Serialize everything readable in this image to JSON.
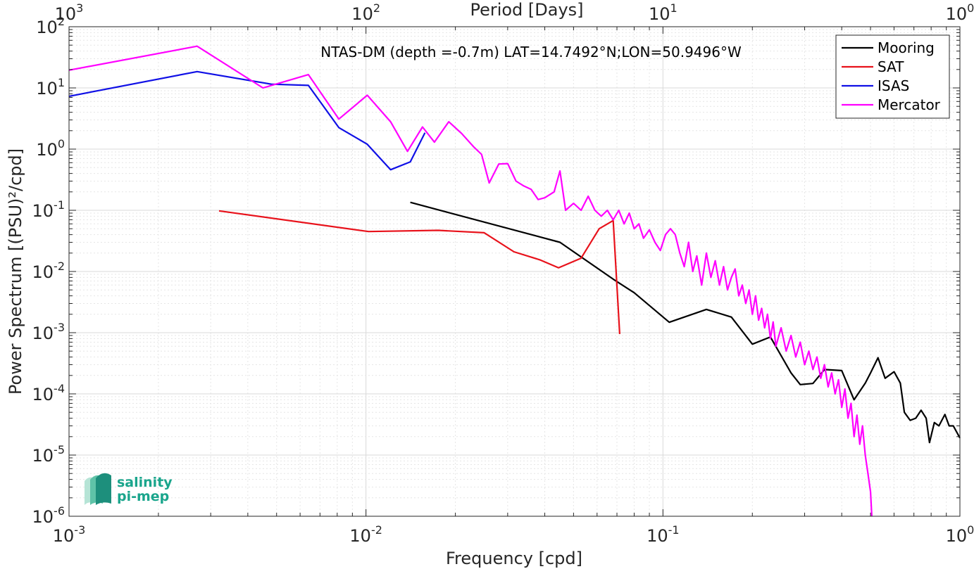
{
  "chart_data": {
    "type": "line",
    "title": "NTAS-DM (depth =-0.7m) LAT=14.7492°N;LON=50.9496°W",
    "xlabel": "Frequency [cpd]",
    "ylabel": "Power Spectrum [(PSU)²/cpd]",
    "top_xlabel": "Period [Days]",
    "x_scale": "log",
    "y_scale": "log",
    "xlim": [
      0.001,
      1
    ],
    "ylim": [
      1e-06,
      100
    ],
    "grid": true,
    "legend_position": "top-right",
    "x_ticks": [
      {
        "base": "10",
        "exp": "-3"
      },
      {
        "base": "10",
        "exp": "-2"
      },
      {
        "base": "10",
        "exp": "-1"
      },
      {
        "base": "10",
        "exp": "0"
      }
    ],
    "top_ticks": [
      {
        "base": "10",
        "exp": "3"
      },
      {
        "base": "10",
        "exp": "2"
      },
      {
        "base": "10",
        "exp": "1"
      },
      {
        "base": "10",
        "exp": "0"
      }
    ],
    "y_ticks": [
      {
        "base": "10",
        "exp": "2"
      },
      {
        "base": "10",
        "exp": "1"
      },
      {
        "base": "10",
        "exp": "0"
      },
      {
        "base": "10",
        "exp": "-1"
      },
      {
        "base": "10",
        "exp": "-2"
      },
      {
        "base": "10",
        "exp": "-3"
      },
      {
        "base": "10",
        "exp": "-4"
      },
      {
        "base": "10",
        "exp": "-5"
      },
      {
        "base": "10",
        "exp": "-6"
      }
    ],
    "series": [
      {
        "name": "Mooring",
        "color": "#000000",
        "points": [
          [
            0.0141,
            0.135
          ],
          [
            0.045,
            0.03
          ],
          [
            0.068,
            0.0075
          ],
          [
            0.08,
            0.0045
          ],
          [
            0.105,
            0.00148
          ],
          [
            0.14,
            0.0024
          ],
          [
            0.17,
            0.0018
          ],
          [
            0.2,
            0.00065
          ],
          [
            0.23,
            0.00085
          ],
          [
            0.27,
            0.00022
          ],
          [
            0.29,
            0.000142
          ],
          [
            0.32,
            0.000148
          ],
          [
            0.35,
            0.00025
          ],
          [
            0.4,
            0.00024
          ],
          [
            0.44,
            8e-05
          ],
          [
            0.48,
            0.00015
          ],
          [
            0.5,
            0.00022
          ],
          [
            0.53,
            0.00039
          ],
          [
            0.56,
            0.00018
          ],
          [
            0.6,
            0.00023
          ],
          [
            0.63,
            0.00015
          ],
          [
            0.65,
            5e-05
          ],
          [
            0.68,
            3.7e-05
          ],
          [
            0.71,
            4e-05
          ],
          [
            0.74,
            5.4e-05
          ],
          [
            0.77,
            4e-05
          ],
          [
            0.79,
            1.6e-05
          ],
          [
            0.82,
            3.4e-05
          ],
          [
            0.85,
            3e-05
          ],
          [
            0.89,
            4.6e-05
          ],
          [
            0.92,
            3e-05
          ],
          [
            0.95,
            3e-05
          ],
          [
            1.0,
            1.9e-05
          ]
        ]
      },
      {
        "name": "SAT",
        "color": "#e8121b",
        "points": [
          [
            0.0032,
            0.098
          ],
          [
            0.0102,
            0.045
          ],
          [
            0.0175,
            0.047
          ],
          [
            0.025,
            0.043
          ],
          [
            0.0315,
            0.021
          ],
          [
            0.0385,
            0.0155
          ],
          [
            0.0445,
            0.0115
          ],
          [
            0.053,
            0.0165
          ],
          [
            0.061,
            0.05
          ],
          [
            0.068,
            0.068
          ],
          [
            0.0715,
            0.00095
          ]
        ]
      },
      {
        "name": "ISAS",
        "color": "#1010e6",
        "points": [
          [
            0.001,
            7.3
          ],
          [
            0.0027,
            18.5
          ],
          [
            0.0048,
            11.5
          ],
          [
            0.0064,
            11.0
          ],
          [
            0.0081,
            2.25
          ],
          [
            0.0101,
            1.2
          ],
          [
            0.0121,
            0.46
          ],
          [
            0.0141,
            0.62
          ],
          [
            0.0158,
            1.85
          ]
        ]
      },
      {
        "name": "Mercator",
        "color": "#ff00ff",
        "points": [
          [
            0.001,
            19.5
          ],
          [
            0.0027,
            48.0
          ],
          [
            0.0045,
            10.0
          ],
          [
            0.0064,
            16.5
          ],
          [
            0.0081,
            3.1
          ],
          [
            0.0101,
            7.6
          ],
          [
            0.0121,
            2.8
          ],
          [
            0.0138,
            0.92
          ],
          [
            0.0155,
            2.3
          ],
          [
            0.017,
            1.3
          ],
          [
            0.019,
            2.8
          ],
          [
            0.021,
            1.8
          ],
          [
            0.023,
            1.1
          ],
          [
            0.0245,
            0.82
          ],
          [
            0.026,
            0.28
          ],
          [
            0.028,
            0.57
          ],
          [
            0.03,
            0.58
          ],
          [
            0.032,
            0.3
          ],
          [
            0.034,
            0.25
          ],
          [
            0.036,
            0.22
          ],
          [
            0.038,
            0.15
          ],
          [
            0.04,
            0.16
          ],
          [
            0.043,
            0.2
          ],
          [
            0.045,
            0.44
          ],
          [
            0.047,
            0.1
          ],
          [
            0.05,
            0.13
          ],
          [
            0.053,
            0.1
          ],
          [
            0.056,
            0.17
          ],
          [
            0.059,
            0.1
          ],
          [
            0.062,
            0.08
          ],
          [
            0.065,
            0.1
          ],
          [
            0.068,
            0.07
          ],
          [
            0.071,
            0.1
          ],
          [
            0.074,
            0.06
          ],
          [
            0.077,
            0.09
          ],
          [
            0.08,
            0.05
          ],
          [
            0.083,
            0.06
          ],
          [
            0.086,
            0.035
          ],
          [
            0.09,
            0.048
          ],
          [
            0.094,
            0.03
          ],
          [
            0.098,
            0.022
          ],
          [
            0.102,
            0.04
          ],
          [
            0.106,
            0.05
          ],
          [
            0.11,
            0.04
          ],
          [
            0.114,
            0.02
          ],
          [
            0.118,
            0.012
          ],
          [
            0.122,
            0.03
          ],
          [
            0.126,
            0.01
          ],
          [
            0.13,
            0.018
          ],
          [
            0.135,
            0.006
          ],
          [
            0.14,
            0.02
          ],
          [
            0.145,
            0.008
          ],
          [
            0.15,
            0.015
          ],
          [
            0.155,
            0.006
          ],
          [
            0.16,
            0.012
          ],
          [
            0.165,
            0.005
          ],
          [
            0.17,
            0.008
          ],
          [
            0.175,
            0.011
          ],
          [
            0.18,
            0.004
          ],
          [
            0.185,
            0.006
          ],
          [
            0.19,
            0.003
          ],
          [
            0.195,
            0.005
          ],
          [
            0.2,
            0.002
          ],
          [
            0.205,
            0.004
          ],
          [
            0.21,
            0.0016
          ],
          [
            0.215,
            0.0025
          ],
          [
            0.22,
            0.0012
          ],
          [
            0.225,
            0.002
          ],
          [
            0.23,
            0.0008
          ],
          [
            0.235,
            0.0015
          ],
          [
            0.24,
            0.0006
          ],
          [
            0.25,
            0.0012
          ],
          [
            0.26,
            0.0005
          ],
          [
            0.27,
            0.0009
          ],
          [
            0.28,
            0.0004
          ],
          [
            0.29,
            0.0007
          ],
          [
            0.3,
            0.0003
          ],
          [
            0.31,
            0.0005
          ],
          [
            0.32,
            0.00025
          ],
          [
            0.33,
            0.0004
          ],
          [
            0.34,
            0.00018
          ],
          [
            0.35,
            0.0003
          ],
          [
            0.36,
            0.00013
          ],
          [
            0.37,
            0.00022
          ],
          [
            0.38,
            0.0001
          ],
          [
            0.39,
            0.00017
          ],
          [
            0.4,
            6e-05
          ],
          [
            0.41,
            0.00012
          ],
          [
            0.42,
            4e-05
          ],
          [
            0.43,
            7e-05
          ],
          [
            0.44,
            2e-05
          ],
          [
            0.45,
            4.5e-05
          ],
          [
            0.46,
            1.5e-05
          ],
          [
            0.47,
            3e-05
          ],
          [
            0.48,
            1e-05
          ],
          [
            0.49,
            5e-06
          ],
          [
            0.5,
            2.5e-06
          ],
          [
            0.505,
            1e-06
          ]
        ]
      }
    ]
  },
  "logo": {
    "line1": "salinity",
    "line2": "pi-mep",
    "color": "#1aa58c"
  }
}
